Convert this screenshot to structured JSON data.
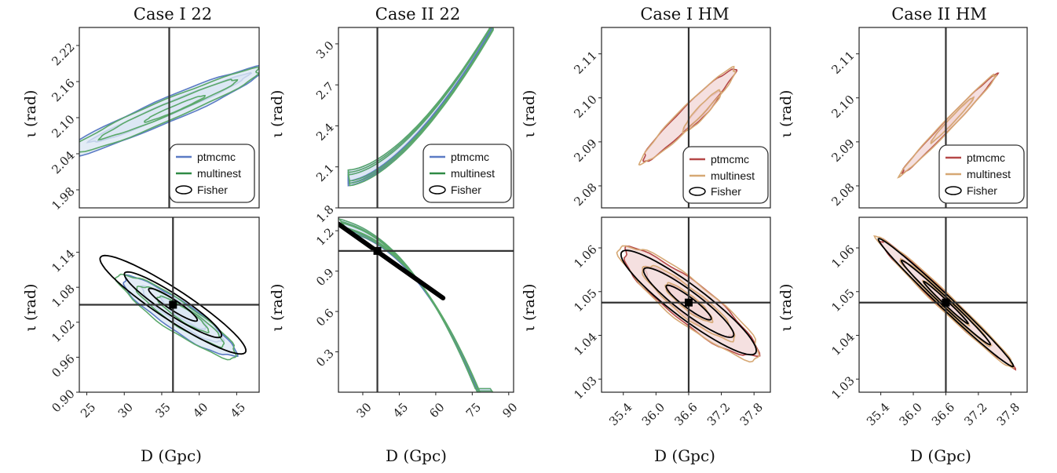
{
  "figure": {
    "titles": [
      "Case I 22",
      "Case II 22",
      "Case I HM",
      "Case II HM"
    ],
    "xlabel": "D (Gpc)",
    "ylabel": "ι (rad)",
    "legend_top": [
      [
        "ptmcmc",
        "multinest",
        "Fisher"
      ],
      [
        "ptmcmc",
        "multinest",
        "Fisher"
      ],
      [
        "ptmcmc",
        "multinest",
        "Fisher"
      ],
      [
        "ptmcmc",
        "multinest",
        "Fisher"
      ]
    ],
    "colors": {
      "ptmcmc_22": "#5b7bc4",
      "multinest_22": "#5aa86a",
      "ptmcmc_hm": "#b54848",
      "multinest_hm": "#d6a874",
      "fisher": "#000000",
      "truth": "#333333",
      "fill_22": "#dce7f4",
      "fill_hm": "#f3d8d8"
    }
  },
  "chart_data": [
    {
      "type": "contour",
      "panel": "Case I 22 (top)",
      "xlabel": "",
      "ylabel": "ι (rad)",
      "xlim": [
        25,
        48
      ],
      "ylim": [
        1.95,
        2.25
      ],
      "yticks": [
        "1.98",
        "2.04",
        "2.10",
        "2.16",
        "2.22"
      ],
      "truth": {
        "x": 36.5
      },
      "series": [
        {
          "name": "ptmcmc",
          "contours": [
            {
              "cx": 36.5,
              "cy": 2.115,
              "rx": 11,
              "ry": 0.013,
              "angle": 0.4
            },
            {
              "cx": 35.8,
              "cy": 2.11,
              "rx": 14.5,
              "ry": 0.025,
              "angle": 0.4
            }
          ]
        },
        {
          "name": "multinest",
          "contours": [
            {
              "cx": 37.2,
              "cy": 2.115,
              "rx": 4.2,
              "ry": 0.006,
              "angle": 0.4
            },
            {
              "cx": 36.5,
              "cy": 2.115,
              "rx": 9.5,
              "ry": 0.012,
              "angle": 0.4
            },
            {
              "cx": 35.8,
              "cy": 2.11,
              "rx": 13.5,
              "ry": 0.022,
              "angle": 0.4
            }
          ]
        }
      ]
    },
    {
      "type": "contour",
      "panel": "Case II 22 (top)",
      "xlabel": "",
      "ylabel": "ι (rad)",
      "xlim": [
        20,
        92
      ],
      "ylim": [
        1.8,
        3.12
      ],
      "yticks": [
        "1.8",
        "2.1",
        "2.4",
        "2.7",
        "3.0"
      ],
      "truth": {
        "x": 36
      },
      "series": [
        {
          "name": "ptmcmc",
          "band": "banana"
        },
        {
          "name": "multinest",
          "band": "banana"
        }
      ]
    },
    {
      "type": "contour",
      "panel": "Case I HM (top)",
      "xlabel": "",
      "ylabel": "ι (rad)",
      "xlim": [
        35.0,
        38.1
      ],
      "ylim": [
        2.075,
        2.116
      ],
      "yticks": [
        "2.08",
        "2.09",
        "2.10",
        "2.11"
      ],
      "truth": {
        "x": 36.6
      },
      "series": [
        {
          "name": "ptmcmc",
          "contours": [
            {
              "cx": 36.85,
              "cy": 2.097,
              "rx": 0.45,
              "ry": 0.0032,
              "angle": 0.75
            },
            {
              "cx": 36.6,
              "cy": 2.096,
              "rx": 1.15,
              "ry": 0.0055,
              "angle": 0.75
            }
          ]
        },
        {
          "name": "multinest",
          "contours": [
            {
              "cx": 36.85,
              "cy": 2.097,
              "rx": 0.47,
              "ry": 0.0035,
              "angle": 0.75
            },
            {
              "cx": 36.6,
              "cy": 2.096,
              "rx": 1.18,
              "ry": 0.0058,
              "angle": 0.75
            }
          ]
        }
      ]
    },
    {
      "type": "contour",
      "panel": "Case II HM (top)",
      "xlabel": "",
      "ylabel": "ι (rad)",
      "xlim": [
        35.0,
        38.1
      ],
      "ylim": [
        2.075,
        2.116
      ],
      "yticks": [
        "2.08",
        "2.09",
        "2.10",
        "2.11"
      ],
      "truth": {
        "x": 36.6
      },
      "series": [
        {
          "name": "ptmcmc",
          "contours": [
            {
              "cx": 36.72,
              "cy": 2.095,
              "rx": 0.55,
              "ry": 0.0018,
              "angle": 0.8
            },
            {
              "cx": 36.65,
              "cy": 2.094,
              "rx": 1.25,
              "ry": 0.0034,
              "angle": 0.8
            }
          ]
        },
        {
          "name": "multinest",
          "contours": [
            {
              "cx": 36.72,
              "cy": 2.095,
              "rx": 0.56,
              "ry": 0.002,
              "angle": 0.8
            },
            {
              "cx": 36.65,
              "cy": 2.094,
              "rx": 1.27,
              "ry": 0.0036,
              "angle": 0.8
            }
          ]
        }
      ]
    },
    {
      "type": "contour",
      "panel": "Case I 22 (bottom)",
      "xlabel": "D (Gpc)",
      "ylabel": "ι (rad)",
      "xlim": [
        24,
        48
      ],
      "ylim": [
        0.9,
        1.2
      ],
      "xticks": [
        "25",
        "30",
        "35",
        "40",
        "45"
      ],
      "yticks": [
        "0.90",
        "0.96",
        "1.02",
        "1.08",
        "1.14"
      ],
      "truth": {
        "x": 36.5,
        "y": 1.05
      },
      "series": [
        {
          "name": "ptmcmc",
          "contours": [
            {
              "cx": 38,
              "cy": 1.035,
              "rx": 3.5,
              "ry": 0.016,
              "angle": -0.55
            },
            {
              "cx": 37.7,
              "cy": 1.033,
              "rx": 6.3,
              "ry": 0.026,
              "angle": -0.55
            },
            {
              "cx": 37.3,
              "cy": 1.03,
              "rx": 8.8,
              "ry": 0.04,
              "angle": -0.55
            }
          ]
        },
        {
          "name": "multinest",
          "contours": [
            {
              "cx": 37.8,
              "cy": 1.034,
              "rx": 4.0,
              "ry": 0.017,
              "angle": -0.55
            },
            {
              "cx": 37.5,
              "cy": 1.031,
              "rx": 6.8,
              "ry": 0.028,
              "angle": -0.55
            },
            {
              "cx": 37.1,
              "cy": 1.03,
              "rx": 9.3,
              "ry": 0.042,
              "angle": -0.55
            }
          ]
        },
        {
          "name": "Fisher",
          "contours": [
            {
              "cx": 36.5,
              "cy": 1.05,
              "rx": 3.8,
              "ry": 0.014,
              "angle": -0.55
            },
            {
              "cx": 36.5,
              "cy": 1.05,
              "rx": 7.6,
              "ry": 0.028,
              "angle": -0.55
            },
            {
              "cx": 36.5,
              "cy": 1.05,
              "rx": 11.4,
              "ry": 0.042,
              "angle": -0.55
            }
          ]
        }
      ]
    },
    {
      "type": "contour",
      "panel": "Case II 22 (bottom)",
      "xlabel": "D (Gpc)",
      "ylabel": "ι (rad)",
      "xlim": [
        20,
        92
      ],
      "ylim": [
        0.0,
        1.3
      ],
      "xticks": [
        "30",
        "45",
        "60",
        "75",
        "90"
      ],
      "yticks": [
        "0.3",
        "0.6",
        "0.9",
        "1.2"
      ],
      "truth": {
        "x": 36,
        "y": 1.05
      },
      "series": [
        {
          "name": "ptmcmc",
          "band": "curve"
        },
        {
          "name": "multinest",
          "band": "curve"
        },
        {
          "name": "Fisher",
          "line": [
            [
              20,
              1.25
            ],
            [
              63,
              0.7
            ]
          ]
        }
      ]
    },
    {
      "type": "contour",
      "panel": "Case I HM (bottom)",
      "xlabel": "D (Gpc)",
      "ylabel": "ι (rad)",
      "xlim": [
        35.0,
        38.1
      ],
      "ylim": [
        1.027,
        1.067
      ],
      "xticks": [
        "35.4",
        "36.0",
        "36.6",
        "37.2",
        "37.8"
      ],
      "yticks": [
        "1.03",
        "1.04",
        "1.05",
        "1.06"
      ],
      "truth": {
        "x": 36.6,
        "y": 1.0475
      },
      "series": [
        {
          "name": "ptmcmc",
          "contours": [
            {
              "cx": 36.6,
              "cy": 1.0475,
              "rx": 0.47,
              "ry": 0.0028,
              "angle": -0.6
            },
            {
              "cx": 36.6,
              "cy": 1.0475,
              "rx": 0.97,
              "ry": 0.0052,
              "angle": -0.6
            },
            {
              "cx": 36.62,
              "cy": 1.0475,
              "rx": 1.48,
              "ry": 0.0082,
              "angle": -0.6
            }
          ]
        },
        {
          "name": "multinest",
          "contours": [
            {
              "cx": 36.6,
              "cy": 1.0475,
              "rx": 0.52,
              "ry": 0.003,
              "angle": -0.6
            },
            {
              "cx": 36.6,
              "cy": 1.0475,
              "rx": 1.02,
              "ry": 0.0056,
              "angle": -0.6
            },
            {
              "cx": 36.62,
              "cy": 1.0475,
              "rx": 1.55,
              "ry": 0.0086,
              "angle": -0.6
            }
          ]
        },
        {
          "name": "Fisher",
          "contours": [
            {
              "cx": 36.6,
              "cy": 1.0475,
              "rx": 0.5,
              "ry": 0.0022,
              "angle": -0.6
            },
            {
              "cx": 36.6,
              "cy": 1.0475,
              "rx": 1.0,
              "ry": 0.0045,
              "angle": -0.6
            },
            {
              "cx": 36.6,
              "cy": 1.0475,
              "rx": 1.5,
              "ry": 0.0068,
              "angle": -0.6
            }
          ]
        }
      ]
    },
    {
      "type": "contour",
      "panel": "Case II HM (bottom)",
      "xlabel": "D (Gpc)",
      "ylabel": "ι (rad)",
      "xlim": [
        35.0,
        38.1
      ],
      "ylim": [
        1.027,
        1.067
      ],
      "xticks": [
        "35.4",
        "36.0",
        "36.6",
        "37.2",
        "37.8"
      ],
      "yticks": [
        "1.03",
        "1.04",
        "1.05",
        "1.06"
      ],
      "truth": {
        "x": 36.6,
        "y": 1.0475
      },
      "series": [
        {
          "name": "ptmcmc",
          "contours": [
            {
              "cx": 36.6,
              "cy": 1.0475,
              "rx": 0.55,
              "ry": 0.0016,
              "angle": -0.75
            },
            {
              "cx": 36.6,
              "cy": 1.0475,
              "rx": 1.1,
              "ry": 0.003,
              "angle": -0.75
            },
            {
              "cx": 36.6,
              "cy": 1.0475,
              "rx": 1.68,
              "ry": 0.0046,
              "angle": -0.75
            }
          ]
        },
        {
          "name": "multinest",
          "contours": [
            {
              "cx": 36.6,
              "cy": 1.0475,
              "rx": 0.58,
              "ry": 0.0018,
              "angle": -0.75
            },
            {
              "cx": 36.6,
              "cy": 1.0475,
              "rx": 1.14,
              "ry": 0.0033,
              "angle": -0.75
            },
            {
              "cx": 36.6,
              "cy": 1.0475,
              "rx": 1.72,
              "ry": 0.0049,
              "angle": -0.75
            }
          ]
        },
        {
          "name": "Fisher",
          "contours": [
            {
              "cx": 36.6,
              "cy": 1.0475,
              "rx": 0.56,
              "ry": 0.0013,
              "angle": -0.75
            },
            {
              "cx": 36.6,
              "cy": 1.0475,
              "rx": 1.12,
              "ry": 0.0026,
              "angle": -0.75
            },
            {
              "cx": 36.6,
              "cy": 1.0475,
              "rx": 1.7,
              "ry": 0.004,
              "angle": -0.75
            }
          ]
        }
      ]
    }
  ]
}
